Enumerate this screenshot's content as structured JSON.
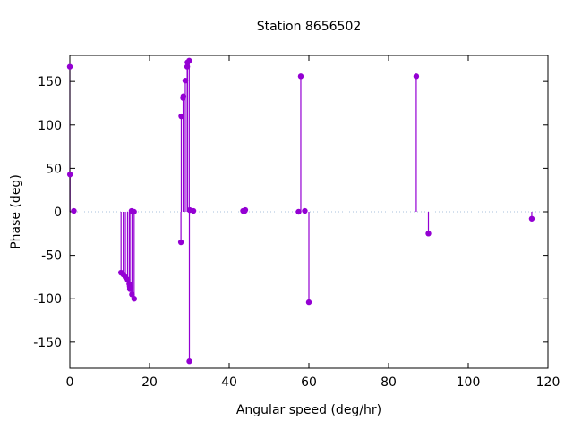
{
  "chart_data": {
    "type": "scatter",
    "style": "impulses-with-points",
    "title": "Station 8656502",
    "xlabel": "Angular speed (deg/hr)",
    "ylabel": "Phase (deg)",
    "xlim": [
      0,
      120
    ],
    "ylim": [
      -180,
      180
    ],
    "xticks": [
      0,
      20,
      40,
      60,
      80,
      100,
      120
    ],
    "yticks": [
      -150,
      -100,
      -50,
      0,
      50,
      100,
      150
    ],
    "grid": false,
    "legend": "none",
    "zero_line": true,
    "zero_line_color": "#a8c0dc",
    "axis_color": "#000000",
    "text_color": "#000000",
    "background_color": "#ffffff",
    "series": [
      {
        "name": "Phase",
        "color": "#9400d3",
        "points": [
          [
            0.0,
            167
          ],
          [
            0.04,
            43
          ],
          [
            1.0,
            1
          ],
          [
            12.85,
            -70
          ],
          [
            13.4,
            -72
          ],
          [
            13.94,
            -75
          ],
          [
            14.49,
            -78
          ],
          [
            14.92,
            -83
          ],
          [
            15.04,
            -86
          ],
          [
            15.08,
            -89
          ],
          [
            15.59,
            -95
          ],
          [
            16.14,
            -100
          ],
          [
            15.5,
            1
          ],
          [
            16.1,
            0
          ],
          [
            27.89,
            -35
          ],
          [
            27.97,
            110
          ],
          [
            28.44,
            131
          ],
          [
            28.51,
            133
          ],
          [
            28.98,
            151
          ],
          [
            29.46,
            167
          ],
          [
            29.53,
            172
          ],
          [
            29.96,
            174
          ],
          [
            30.0,
            -172
          ],
          [
            30.08,
            2
          ],
          [
            31.02,
            1
          ],
          [
            43.48,
            1
          ],
          [
            43.9,
            1
          ],
          [
            44.03,
            2
          ],
          [
            57.42,
            0
          ],
          [
            57.97,
            156
          ],
          [
            58.98,
            1
          ],
          [
            60.0,
            -104
          ],
          [
            86.95,
            156
          ],
          [
            90.0,
            -25
          ],
          [
            115.94,
            -8
          ]
        ]
      }
    ]
  }
}
